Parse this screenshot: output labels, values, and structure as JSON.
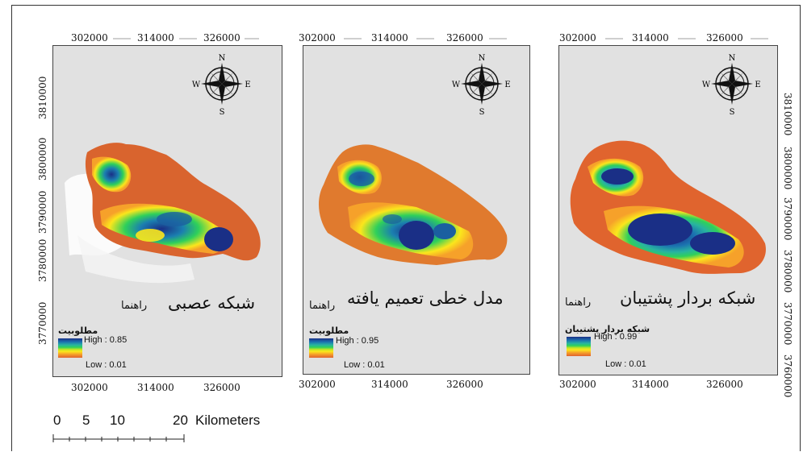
{
  "panels": [
    {
      "title": "شبکه عصبی",
      "guide": "راهنما",
      "legend_title": "مطلوبیت",
      "legend_high": "High : 0.85",
      "legend_low": "Low : 0.01",
      "x_ticks_top": [
        "302000",
        "314000",
        "326000"
      ],
      "x_ticks_bottom": [
        "302000",
        "314000",
        "326000"
      ],
      "y_ticks_left": [
        "3810000",
        "3800000",
        "3790000",
        "3780000",
        "3770000"
      ]
    },
    {
      "title": "مدل خطی تعمیم یافته",
      "guide": "راهنما",
      "legend_title": "مطلوبیت",
      "legend_high": "High : 0.95",
      "legend_low": "Low : 0.01",
      "x_ticks_top": [
        "302000",
        "314000",
        "326000"
      ],
      "x_ticks_bottom": [
        "302000",
        "314000",
        "326000"
      ]
    },
    {
      "title": "شبکه بردار پشتیبان",
      "guide": "راهنما",
      "legend_title": "شبکه بردار پشتیبان",
      "legend_high": "High : 0.99",
      "legend_low": "Low : 0.01",
      "x_ticks_top": [
        "302000",
        "314000",
        "326000"
      ],
      "x_ticks_bottom": [
        "302000",
        "314000",
        "326000"
      ],
      "y_ticks_right": [
        "3810000",
        "3800000",
        "3790000",
        "3780000",
        "3770000",
        "3760000"
      ]
    }
  ],
  "compass": {
    "n": "N",
    "s": "S",
    "e": "E",
    "w": "W"
  },
  "scale_bar": {
    "label": "0   5   10        20 Kilometers",
    "units": "Kilometers",
    "ticks": [
      "0",
      "5",
      "10",
      "20"
    ]
  },
  "colors": {
    "high": "#1a2f86",
    "mid": "#2fd05a",
    "yellow": "#fbe61c",
    "low": "#d9642e",
    "background": "#e1e1e1"
  }
}
